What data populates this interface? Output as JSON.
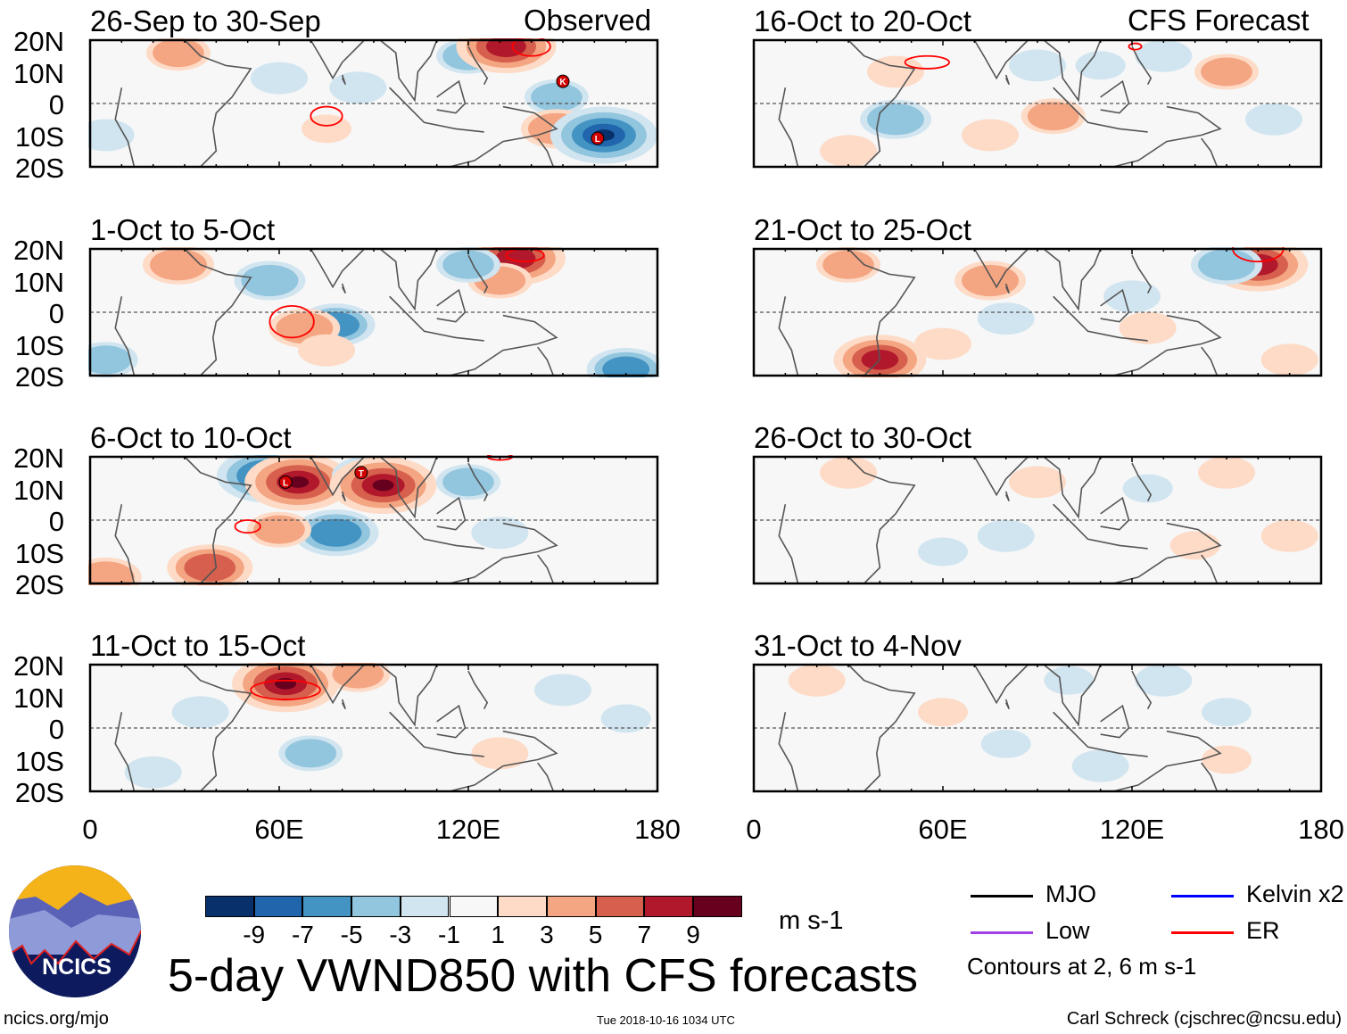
{
  "title": "5-day VWND850 with CFS forecasts",
  "labels": {
    "observed": "Observed",
    "forecast": "CFS Forecast"
  },
  "axis": {
    "y_ticks": [
      "20N",
      "10N",
      "0",
      "10S",
      "20S"
    ],
    "x_ticks_left": [
      "0",
      "60E",
      "120E",
      "180"
    ],
    "x_ticks_right": [
      "0",
      "60E",
      "120E",
      "180"
    ],
    "lat_range": [
      -20,
      20
    ],
    "lon_range": [
      0,
      180
    ]
  },
  "panels_left": [
    {
      "title": "26-Sep to 30-Sep",
      "features": [
        [
          28,
          16,
          4
        ],
        [
          60,
          8,
          -3
        ],
        [
          85,
          5,
          -3
        ],
        [
          120,
          15,
          -4
        ],
        [
          132,
          18,
          9
        ],
        [
          148,
          2,
          -4
        ],
        [
          148,
          -8,
          5
        ],
        [
          163,
          -10,
          -10
        ],
        [
          5,
          -10,
          -3
        ],
        [
          75,
          -8,
          2
        ]
      ],
      "contours": [
        [
          140,
          18,
          6,
          3
        ],
        [
          75,
          -4,
          5,
          3
        ]
      ],
      "storms": [
        {
          "lon": 150,
          "lat": 7,
          "letter": "K"
        },
        {
          "lon": 161,
          "lat": -11,
          "letter": "L"
        }
      ]
    },
    {
      "title": "1-Oct to 5-Oct",
      "features": [
        [
          28,
          15,
          5
        ],
        [
          57,
          10,
          -5
        ],
        [
          78,
          -4,
          -6
        ],
        [
          68,
          -5,
          5
        ],
        [
          135,
          17,
          9
        ],
        [
          130,
          10,
          4
        ],
        [
          120,
          15,
          -4
        ],
        [
          5,
          -15,
          -4
        ],
        [
          170,
          -18,
          -6
        ],
        [
          75,
          -12,
          3
        ]
      ],
      "contours": [
        [
          64,
          -3,
          7,
          5
        ],
        [
          138,
          18,
          6,
          2
        ]
      ],
      "storms": []
    },
    {
      "title": "6-Oct to 10-Oct",
      "features": [
        [
          56,
          14,
          -9
        ],
        [
          66,
          12,
          10
        ],
        [
          88,
          14,
          -5
        ],
        [
          93,
          11,
          10
        ],
        [
          78,
          -4,
          -7
        ],
        [
          60,
          -3,
          4
        ],
        [
          38,
          -15,
          7
        ],
        [
          5,
          -18,
          5
        ],
        [
          120,
          12,
          -4
        ],
        [
          130,
          -4,
          -3
        ]
      ],
      "contours": [
        [
          50,
          -2,
          4,
          2
        ],
        [
          130,
          20,
          4,
          1
        ]
      ],
      "storms": [
        {
          "lon": 62,
          "lat": 12,
          "letter": "L"
        },
        {
          "lon": 86,
          "lat": 15,
          "letter": "T"
        }
      ]
    },
    {
      "title": "11-Oct to 15-Oct",
      "features": [
        [
          62,
          14,
          10
        ],
        [
          85,
          17,
          4
        ],
        [
          35,
          5,
          -3
        ],
        [
          70,
          -8,
          -4
        ],
        [
          20,
          -14,
          -3
        ],
        [
          150,
          12,
          -3
        ],
        [
          130,
          -8,
          3
        ],
        [
          170,
          3,
          -2
        ]
      ],
      "contours": [
        [
          62,
          12,
          11,
          3
        ]
      ],
      "storms": []
    }
  ],
  "panels_right": [
    {
      "title": "16-Oct to 20-Oct",
      "features": [
        [
          45,
          10,
          3
        ],
        [
          45,
          -5,
          -5
        ],
        [
          90,
          12,
          -3
        ],
        [
          95,
          -4,
          4
        ],
        [
          110,
          12,
          -2
        ],
        [
          130,
          15,
          -3
        ],
        [
          150,
          10,
          4
        ],
        [
          165,
          -5,
          -3
        ],
        [
          30,
          -15,
          3
        ],
        [
          75,
          -10,
          3
        ]
      ],
      "contours": [
        [
          55,
          13,
          7,
          2
        ],
        [
          121,
          18,
          2,
          1
        ]
      ],
      "storms": []
    },
    {
      "title": "21-Oct to 25-Oct",
      "features": [
        [
          160,
          15,
          9
        ],
        [
          150,
          15,
          -5
        ],
        [
          40,
          -15,
          8
        ],
        [
          30,
          15,
          4
        ],
        [
          75,
          10,
          5
        ],
        [
          80,
          -2,
          -3
        ],
        [
          120,
          5,
          -3
        ],
        [
          60,
          -10,
          3
        ],
        [
          125,
          -5,
          3
        ],
        [
          170,
          -15,
          3
        ]
      ],
      "contours": [
        [
          160,
          20,
          8,
          4
        ]
      ],
      "storms": []
    },
    {
      "title": "26-Oct to 30-Oct",
      "features": [
        [
          30,
          15,
          3
        ],
        [
          90,
          12,
          3
        ],
        [
          80,
          -5,
          -3
        ],
        [
          60,
          -10,
          -2
        ],
        [
          150,
          15,
          3
        ],
        [
          170,
          -5,
          3
        ],
        [
          140,
          -8,
          2
        ],
        [
          125,
          10,
          -2
        ]
      ],
      "contours": [],
      "storms": []
    },
    {
      "title": "31-Oct to 4-Nov",
      "features": [
        [
          20,
          15,
          3
        ],
        [
          100,
          15,
          -2
        ],
        [
          130,
          15,
          -3
        ],
        [
          150,
          5,
          -2
        ],
        [
          80,
          -5,
          -2
        ],
        [
          110,
          -12,
          -3
        ],
        [
          150,
          -10,
          2
        ],
        [
          60,
          5,
          2
        ]
      ],
      "contours": [],
      "storms": []
    }
  ],
  "colorbar": {
    "colors": [
      "#08306b",
      "#2166ac",
      "#4393c3",
      "#92c5de",
      "#d1e5f0",
      "#f7f7f7",
      "#fddbc7",
      "#f4a582",
      "#d6604d",
      "#b2182b",
      "#67001f"
    ],
    "labels": [
      "-9",
      "-7",
      "-5",
      "-3",
      "-1",
      "1",
      "3",
      "5",
      "7",
      "9"
    ],
    "units": "m s-1"
  },
  "legend": {
    "items": [
      {
        "label": "MJO",
        "color": "#000000"
      },
      {
        "label": "Kelvin x2",
        "color": "#0000ff"
      },
      {
        "label": "Low",
        "color": "#a040e0"
      },
      {
        "label": "ER",
        "color": "#ff0000"
      }
    ],
    "note": "Contours at 2, 6 m s-1"
  },
  "logo_text": "NCICS",
  "footer": {
    "url": "ncics.org/mjo",
    "timestamp": "Tue 2018-10-16 1034 UTC",
    "author": "Carl Schreck (cjschrec@ncsu.edu)"
  }
}
